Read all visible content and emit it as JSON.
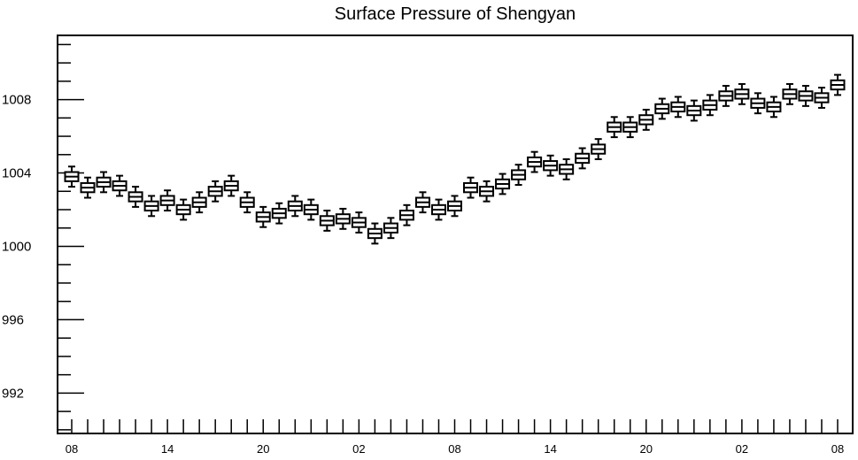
{
  "chart_data": {
    "type": "box",
    "title": "Surface Pressure of Shengyan",
    "xlabel": "",
    "ylabel": "",
    "ylim": [
      989.8,
      1011.5
    ],
    "y_ticks": [
      992,
      996,
      1000,
      1004,
      1008
    ],
    "x_tick_labels": [
      "08",
      "14",
      "20",
      "02",
      "08",
      "14",
      "20",
      "02",
      "08"
    ],
    "series": [
      {
        "median": [
          1003.8,
          1003.2,
          1003.5,
          1003.3,
          1002.7,
          1002.2,
          1002.5,
          1002.0,
          1002.4,
          1003.0,
          1003.3,
          1002.4,
          1001.6,
          1001.8,
          1002.2,
          1002.0,
          1001.4,
          1001.5,
          1001.3,
          1000.7,
          1001.0,
          1001.7,
          1002.4,
          1002.0,
          1002.2,
          1003.2,
          1003.0,
          1003.4,
          1003.9,
          1004.6,
          1004.4,
          1004.2,
          1004.8,
          1005.3,
          1006.5,
          1006.5,
          1006.9,
          1007.5,
          1007.6,
          1007.4,
          1007.7,
          1008.2,
          1008.3,
          1007.8,
          1007.6,
          1008.3,
          1008.2,
          1008.1,
          1008.8
        ]
      }
    ]
  }
}
